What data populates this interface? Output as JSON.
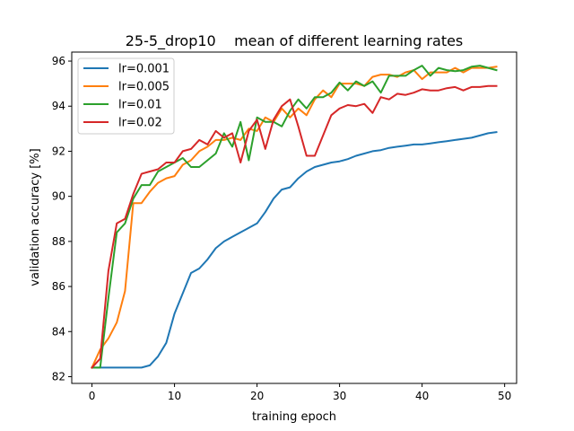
{
  "chart_data": {
    "type": "line",
    "title": "25-5_drop10    mean of different learning rates",
    "xlabel": "training epoch",
    "ylabel": "validation accuracy [%]",
    "xlim": [
      -2.45,
      51.45
    ],
    "ylim": [
      81.7,
      96.4
    ],
    "xticks": [
      0,
      10,
      20,
      30,
      40,
      50
    ],
    "yticks": [
      82,
      84,
      86,
      88,
      90,
      92,
      94,
      96
    ],
    "grid": false,
    "legend_position": "top-left",
    "x": [
      0,
      1,
      2,
      3,
      4,
      5,
      6,
      7,
      8,
      9,
      10,
      11,
      12,
      13,
      14,
      15,
      16,
      17,
      18,
      19,
      20,
      21,
      22,
      23,
      24,
      25,
      26,
      27,
      28,
      29,
      30,
      31,
      32,
      33,
      34,
      35,
      36,
      37,
      38,
      39,
      40,
      41,
      42,
      43,
      44,
      45,
      46,
      47,
      48,
      49
    ],
    "series": [
      {
        "name": "lr=0.001",
        "color": "#1f77b4",
        "values": [
          82.4,
          82.4,
          82.4,
          82.4,
          82.4,
          82.4,
          82.4,
          82.5,
          82.9,
          83.5,
          84.8,
          85.7,
          86.6,
          86.8,
          87.2,
          87.7,
          88.0,
          88.2,
          88.4,
          88.6,
          88.8,
          89.3,
          89.9,
          90.3,
          90.4,
          90.8,
          91.1,
          91.3,
          91.4,
          91.5,
          91.55,
          91.65,
          91.8,
          91.9,
          92.0,
          92.05,
          92.15,
          92.2,
          92.25,
          92.3,
          92.3,
          92.35,
          92.4,
          92.45,
          92.5,
          92.55,
          92.6,
          92.7,
          92.8,
          92.85
        ]
      },
      {
        "name": "lr=0.005",
        "color": "#ff7f0e",
        "values": [
          82.4,
          83.2,
          83.7,
          84.4,
          85.8,
          89.7,
          89.7,
          90.2,
          90.6,
          90.8,
          90.9,
          91.4,
          91.6,
          92.0,
          92.2,
          92.5,
          92.5,
          92.6,
          92.5,
          93.0,
          92.9,
          93.5,
          93.3,
          93.9,
          93.5,
          93.9,
          93.6,
          94.3,
          94.7,
          94.4,
          95.0,
          95.0,
          95.0,
          94.9,
          95.3,
          95.4,
          95.4,
          95.3,
          95.5,
          95.6,
          95.2,
          95.5,
          95.5,
          95.5,
          95.7,
          95.5,
          95.7,
          95.7,
          95.7,
          95.75
        ]
      },
      {
        "name": "lr=0.01",
        "color": "#2ca02c",
        "values": [
          82.4,
          82.4,
          85.5,
          88.4,
          88.8,
          89.9,
          90.5,
          90.5,
          91.1,
          91.3,
          91.5,
          91.7,
          91.3,
          91.3,
          91.6,
          91.9,
          92.8,
          92.2,
          93.3,
          91.6,
          93.5,
          93.3,
          93.3,
          93.1,
          93.8,
          94.3,
          93.9,
          94.4,
          94.4,
          94.6,
          95.05,
          94.7,
          95.1,
          94.9,
          95.1,
          94.6,
          95.35,
          95.35,
          95.35,
          95.6,
          95.8,
          95.35,
          95.7,
          95.6,
          95.55,
          95.6,
          95.75,
          95.8,
          95.7,
          95.6
        ]
      },
      {
        "name": "lr=0.02",
        "color": "#d62728",
        "values": [
          82.4,
          82.8,
          86.7,
          88.8,
          89.0,
          90.1,
          91.0,
          91.1,
          91.2,
          91.5,
          91.5,
          92.0,
          92.1,
          92.5,
          92.3,
          92.9,
          92.6,
          92.8,
          91.5,
          92.9,
          93.4,
          92.1,
          93.4,
          94.0,
          94.3,
          93.1,
          91.8,
          91.8,
          92.7,
          93.6,
          93.9,
          94.05,
          94.0,
          94.1,
          93.7,
          94.4,
          94.3,
          94.55,
          94.5,
          94.6,
          94.75,
          94.7,
          94.7,
          94.8,
          94.85,
          94.7,
          94.85,
          94.85,
          94.9,
          94.9
        ]
      }
    ]
  }
}
